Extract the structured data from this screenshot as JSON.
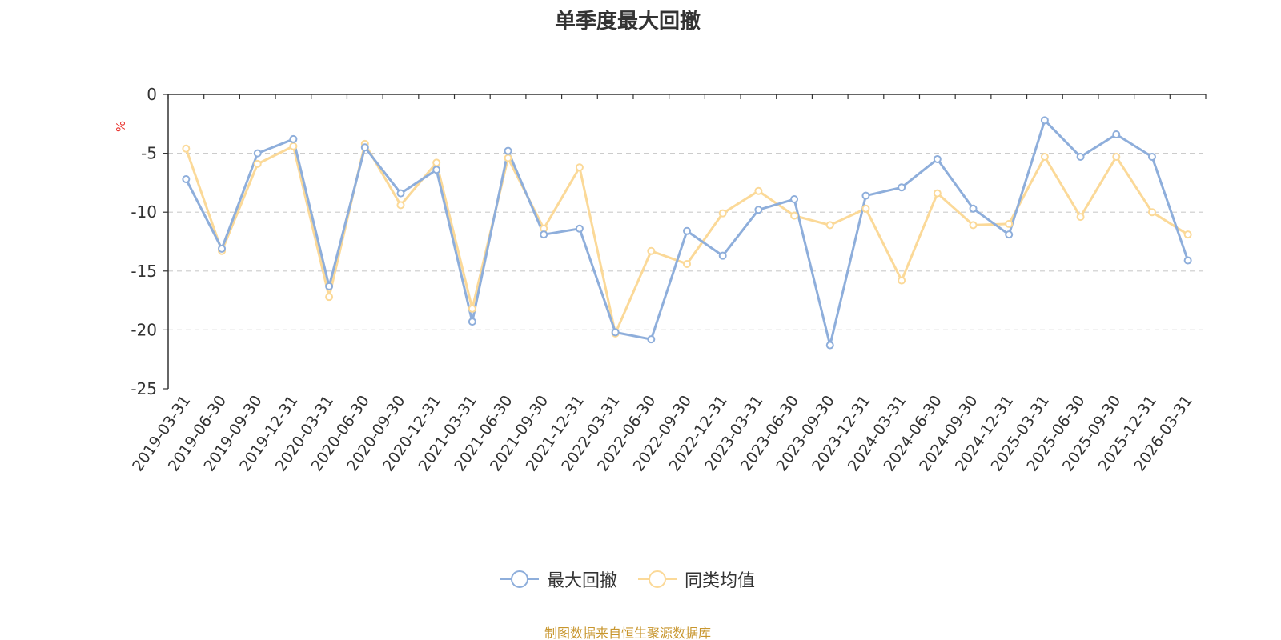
{
  "chart_data": {
    "type": "line",
    "title": "单季度最大回撤",
    "ylabel": "%",
    "ylim": [
      -25,
      0
    ],
    "yticks": [
      "0",
      "-5",
      "-10",
      "-15",
      "-20",
      "-25"
    ],
    "grid": true,
    "legend_position": "bottom",
    "source_text": "制图数据来自恒生聚源数据库",
    "categories": [
      "2019-03-31",
      "2019-06-30",
      "2019-09-30",
      "2019-12-31",
      "2020-03-31",
      "2020-06-30",
      "2020-09-30",
      "2020-12-31",
      "2021-03-31",
      "2021-06-30",
      "2021-09-30",
      "2021-12-31",
      "2022-03-31",
      "2022-06-30",
      "2022-09-30",
      "2022-12-31",
      "2023-03-31",
      "2023-06-30",
      "2023-09-30",
      "2023-12-31",
      "2024-03-31",
      "2024-06-30",
      "2024-09-30",
      "2024-12-31",
      "2025-03-31",
      "2025-06-30",
      "2025-09-30",
      "2025-12-31",
      "2026-03-31"
    ],
    "series": [
      {
        "name": "最大回撤",
        "color": "#8eaedb",
        "values": [
          -7.2,
          -13.1,
          -5.0,
          -3.8,
          -16.3,
          -4.5,
          -8.4,
          -6.4,
          -19.3,
          -4.8,
          -11.9,
          -11.4,
          -20.2,
          -20.8,
          -11.6,
          -13.7,
          -9.8,
          -8.9,
          -21.3,
          -8.6,
          -7.9,
          -5.5,
          -9.7,
          -11.9,
          -2.2,
          -5.3,
          -3.4,
          -5.3,
          -14.1
        ]
      },
      {
        "name": "同类均值",
        "color": "#fbd998",
        "values": [
          -4.6,
          -13.3,
          -5.9,
          -4.4,
          -17.2,
          -4.2,
          -9.4,
          -5.8,
          -18.2,
          -5.4,
          -11.4,
          -6.2,
          -20.3,
          -13.3,
          -14.4,
          -10.1,
          -8.2,
          -10.3,
          -11.1,
          -9.7,
          -15.8,
          -8.4,
          -11.1,
          -11.0,
          -5.3,
          -10.4,
          -5.3,
          -10.0,
          -11.9
        ]
      }
    ]
  }
}
